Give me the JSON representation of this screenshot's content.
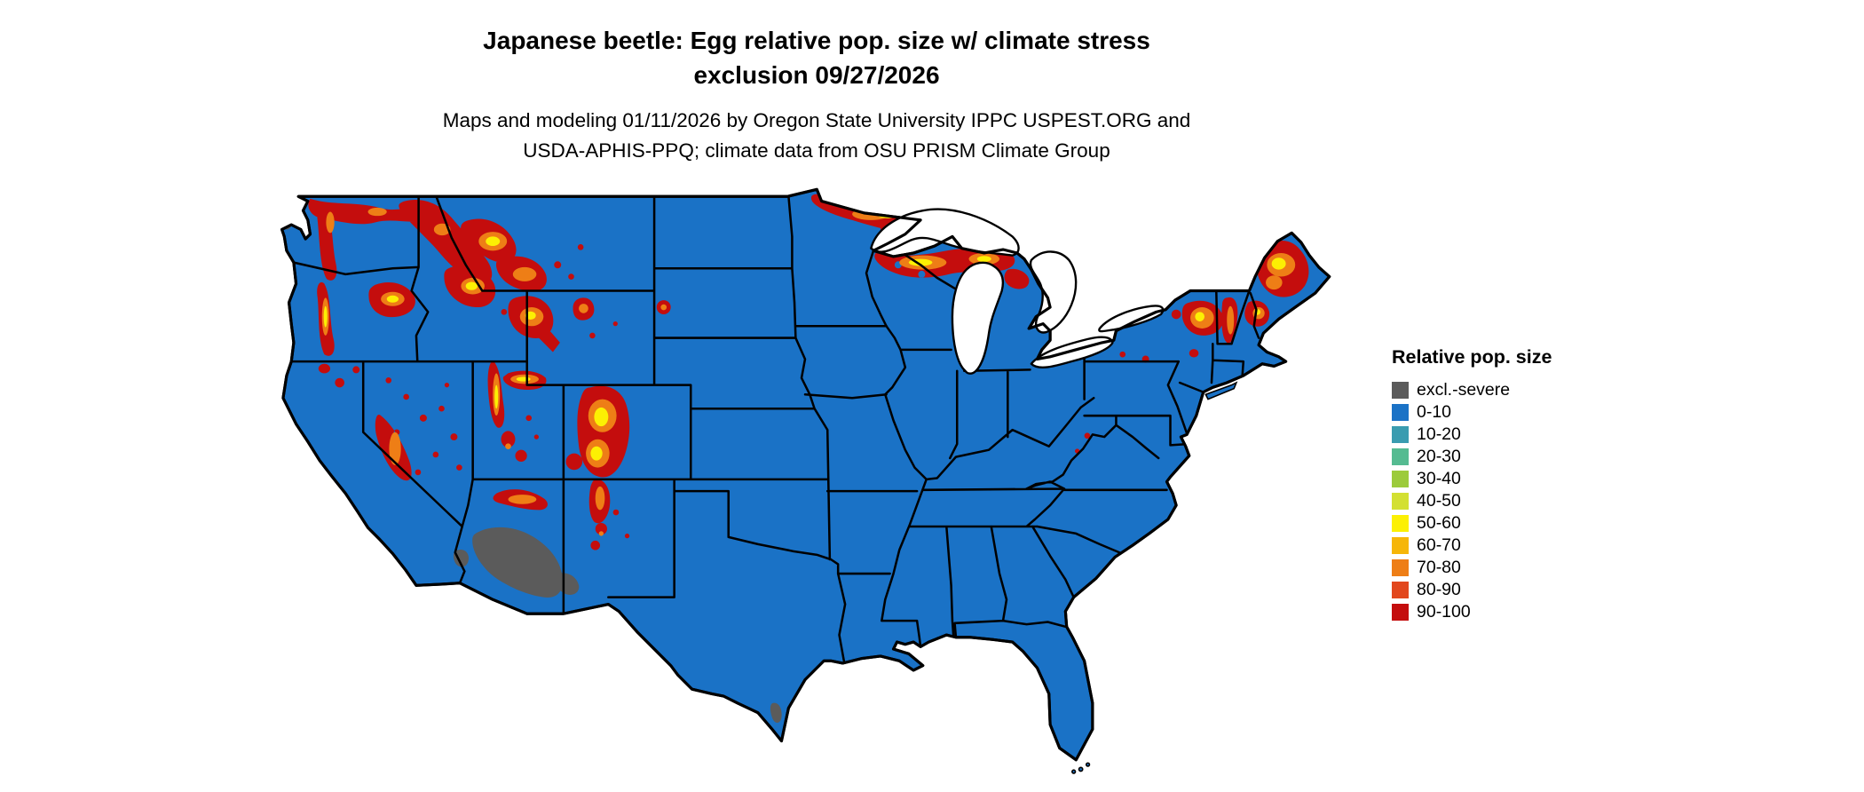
{
  "title": {
    "line1": "Japanese beetle: Egg relative pop. size w/ climate stress",
    "line2": "exclusion 09/27/2026"
  },
  "subtitle": {
    "line1": "Maps and modeling 01/11/2026 by Oregon State University IPPC USPEST.ORG and",
    "line2": "USDA-APHIS-PPQ; climate data from OSU PRISM Climate Group"
  },
  "legend": {
    "title": "Relative pop. size",
    "items": [
      {
        "label": "excl.-severe",
        "color": "#5b5b5b"
      },
      {
        "label": "0-10",
        "color": "#1a72c6"
      },
      {
        "label": "10-20",
        "color": "#3a9cb0"
      },
      {
        "label": "20-30",
        "color": "#55bb91"
      },
      {
        "label": "30-40",
        "color": "#9ccb3b"
      },
      {
        "label": "40-50",
        "color": "#d3e032"
      },
      {
        "label": "50-60",
        "color": "#fcf003"
      },
      {
        "label": "60-70",
        "color": "#f6b608"
      },
      {
        "label": "70-80",
        "color": "#ee7e16"
      },
      {
        "label": "80-90",
        "color": "#e2471d"
      },
      {
        "label": "90-100",
        "color": "#c40d0d"
      }
    ]
  },
  "map": {
    "region": "Continental United States",
    "land_color": "#1a72c6",
    "water_color": "#ffffff",
    "border_color": "#000000"
  }
}
